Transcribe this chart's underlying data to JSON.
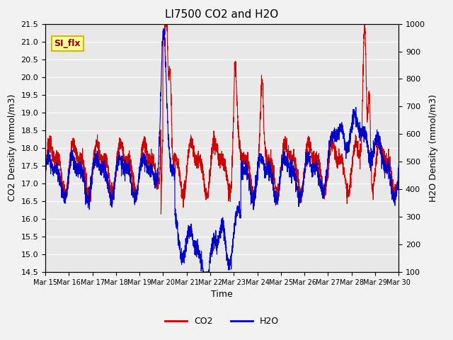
{
  "title": "LI7500 CO2 and H2O",
  "xlabel": "Time",
  "ylabel_left": "CO2 Density (mmol/m3)",
  "ylabel_right": "H2O Density (mmol/m3)",
  "ylim_left": [
    14.5,
    21.5
  ],
  "ylim_right": [
    100,
    1000
  ],
  "xtick_labels": [
    "Mar 15",
    "Mar 16",
    "Mar 17",
    "Mar 18",
    "Mar 19",
    "Mar 20",
    "Mar 21",
    "Mar 22",
    "Mar 23",
    "Mar 24",
    "Mar 25",
    "Mar 26",
    "Mar 27",
    "Mar 28",
    "Mar 29",
    "Mar 30"
  ],
  "legend_labels": [
    "CO2",
    "H2O"
  ],
  "annotation_text": "SI_flx",
  "annotation_bg": "#ffff99",
  "annotation_border": "#ccaa00",
  "fig_bg": "#f2f2f2",
  "plot_bg": "#e8e8e8",
  "co2_color": "#cc0000",
  "h2o_color": "#0000cc",
  "title_fontsize": 11,
  "axis_label_fontsize": 9,
  "tick_fontsize": 8,
  "legend_fontsize": 9,
  "grid_color": "#ffffff",
  "n_points": 3000
}
